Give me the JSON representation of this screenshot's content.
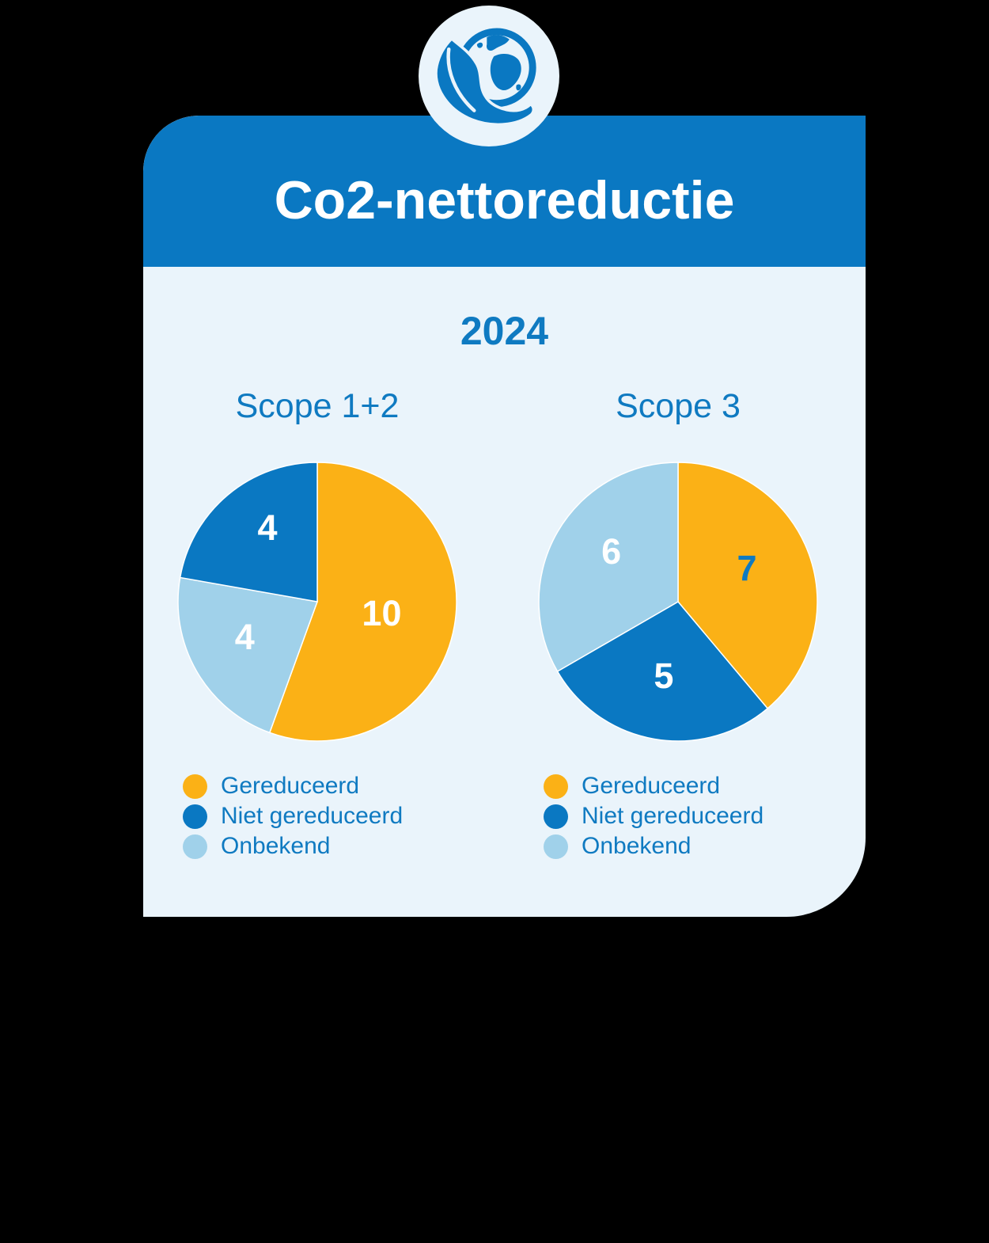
{
  "card": {
    "header": {
      "title": "Co2-nettoreductie",
      "background": "#0a78c2",
      "text_color": "#ffffff"
    },
    "year": "2024",
    "background": "#eaf4fb"
  },
  "badge": {
    "icon": "leaf-globe-icon",
    "background": "#eaf4fb",
    "glyph_color": "#0a78c2"
  },
  "colors": {
    "brand_blue": "#0a78c2",
    "orange": "#fbb116",
    "light_blue": "#a0d1ea",
    "text_blue": "#0f7ac1",
    "card_background": "#eaf4fb",
    "page_background": "#000000",
    "slice_separator": "#ffffff"
  },
  "chart_data": [
    {
      "type": "pie",
      "title": "Scope 1+2",
      "start_angle": 0,
      "direction": "clockwise",
      "legend_position": "bottom-left",
      "slices": [
        {
          "label": "Gereduceerd",
          "value": 10,
          "color": "#fbb116",
          "label_color": "#ffffff",
          "label_angle": 100,
          "label_radius": 0.47
        },
        {
          "label": "Onbekend",
          "value": 4,
          "color": "#a0d1ea",
          "label_color": "#ffffff",
          "label_angle": 244,
          "label_radius": 0.58
        },
        {
          "label": "Niet gereduceerd",
          "value": 4,
          "color": "#0a78c2",
          "label_color": "#ffffff",
          "label_angle": 326,
          "label_radius": 0.64
        }
      ],
      "legend": [
        {
          "label": "Gereduceerd",
          "color": "#fbb116"
        },
        {
          "label": "Niet gereduceerd",
          "color": "#0a78c2"
        },
        {
          "label": "Onbekend",
          "color": "#a0d1ea"
        }
      ]
    },
    {
      "type": "pie",
      "title": "Scope 3",
      "start_angle": 0,
      "direction": "clockwise",
      "legend_position": "bottom-left",
      "slices": [
        {
          "label": "Gereduceerd",
          "value": 7,
          "color": "#fbb116",
          "label_color": "#0f7ac1",
          "label_angle": 64,
          "label_radius": 0.55
        },
        {
          "label": "Niet gereduceerd",
          "value": 5,
          "color": "#0a78c2",
          "label_color": "#ffffff",
          "label_angle": 191,
          "label_radius": 0.54
        },
        {
          "label": "Onbekend",
          "value": 6,
          "color": "#a0d1ea",
          "label_color": "#ffffff",
          "label_angle": 307,
          "label_radius": 0.6
        }
      ],
      "legend": [
        {
          "label": "Gereduceerd",
          "color": "#fbb116"
        },
        {
          "label": "Niet gereduceerd",
          "color": "#0a78c2"
        },
        {
          "label": "Onbekend",
          "color": "#a0d1ea"
        }
      ]
    }
  ]
}
